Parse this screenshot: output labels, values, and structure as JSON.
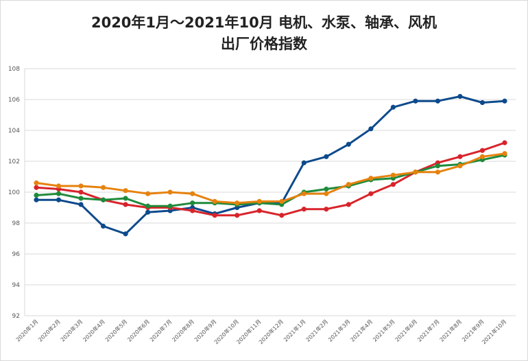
{
  "chart_data": {
    "type": "line",
    "title_lines": [
      "2020年1月～2021年10月 电机、水泵、轴承、风机",
      "出厂价格指数"
    ],
    "xlabel": "",
    "ylabel": "",
    "ylim": [
      92,
      108
    ],
    "yticks": [
      92,
      94,
      96,
      98,
      100,
      102,
      104,
      106,
      108
    ],
    "grid": true,
    "legend": "none",
    "categories": [
      "2020年1月",
      "2020年2月",
      "2020年3月",
      "2020年4月",
      "2020年5月",
      "2020年6月",
      "2020年7月",
      "2020年8月",
      "2020年9月",
      "2020年10月",
      "2020年11月",
      "2020年12月",
      "2021年1月",
      "2021年2月",
      "2021年3月",
      "2021年4月",
      "2021年5月",
      "2021年6月",
      "2021年7月",
      "2021年8月",
      "2021年9月",
      "2021年10月"
    ],
    "series": [
      {
        "color": "#0d4a8c",
        "values": [
          99.5,
          99.5,
          99.2,
          97.8,
          97.3,
          98.7,
          98.8,
          99.0,
          98.6,
          99.0,
          99.3,
          99.3,
          101.9,
          102.3,
          103.1,
          104.1,
          105.5,
          105.9,
          105.9,
          106.2,
          105.8,
          105.9
        ]
      },
      {
        "color": "#d8232a",
        "values": [
          100.3,
          100.2,
          100.0,
          99.5,
          99.2,
          99.0,
          99.0,
          98.8,
          98.5,
          98.5,
          98.8,
          98.5,
          98.9,
          98.9,
          99.2,
          99.9,
          100.5,
          101.3,
          101.9,
          102.3,
          102.7,
          103.2
        ]
      },
      {
        "color": "#1f8a3b",
        "values": [
          99.8,
          99.9,
          99.6,
          99.5,
          99.6,
          99.1,
          99.1,
          99.3,
          99.3,
          99.2,
          99.3,
          99.2,
          100.0,
          100.2,
          100.4,
          100.8,
          100.9,
          101.3,
          101.7,
          101.8,
          102.1,
          102.4
        ]
      },
      {
        "color": "#e6820e",
        "values": [
          100.6,
          100.4,
          100.4,
          100.3,
          100.1,
          99.9,
          100.0,
          99.9,
          99.4,
          99.3,
          99.4,
          99.4,
          99.9,
          99.9,
          100.5,
          100.9,
          101.1,
          101.3,
          101.3,
          101.7,
          102.3,
          102.5
        ]
      }
    ]
  }
}
